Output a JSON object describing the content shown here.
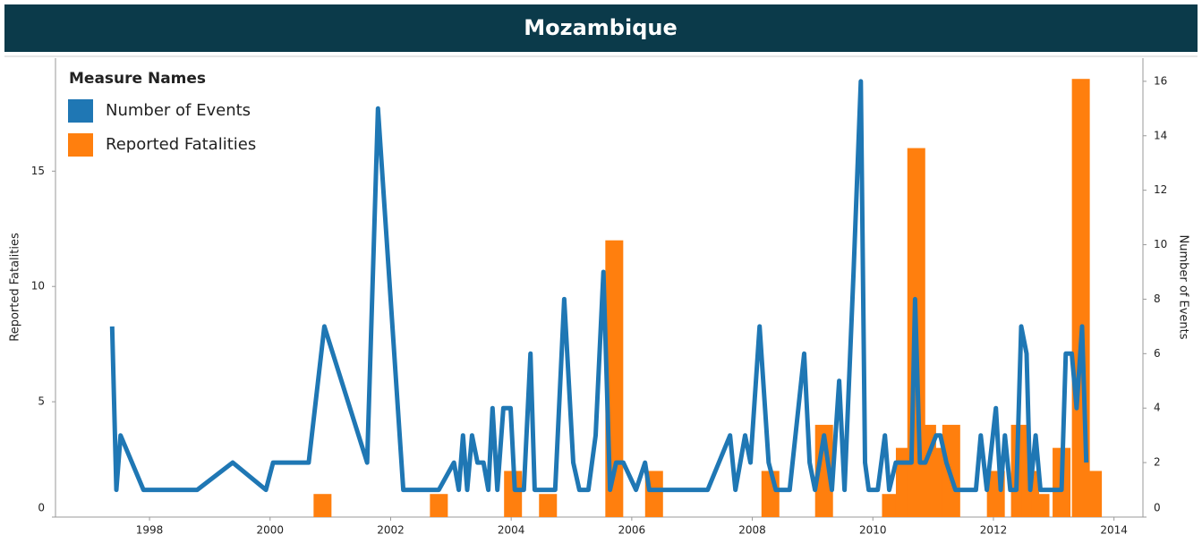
{
  "chart_data": {
    "type": "combo",
    "title": "Mozambique",
    "legend_title": "Measure Names",
    "y_label": "Reported Fatalities",
    "y2_label": "Number of Events",
    "xlim": [
      1996.44,
      2014.48
    ],
    "xticks": [
      1998,
      2000,
      2002,
      2004,
      2006,
      2008,
      2010,
      2012,
      2014
    ],
    "ylim": [
      0,
      19.9
    ],
    "yticks": [
      0,
      5,
      10,
      15
    ],
    "y2lim": [
      0,
      16.85
    ],
    "y2ticks": [
      0,
      2,
      4,
      6,
      8,
      10,
      12,
      14,
      16
    ],
    "legend": "upper left",
    "series": [
      {
        "name": "Number of Events",
        "type": "line",
        "axis": "y2",
        "color": "#1f77b4",
        "x": [
          1997.38,
          1997.45,
          1997.52,
          1997.9,
          1998.79,
          1999.38,
          1999.93,
          2000.05,
          2000.64,
          2000.9,
          2001.61,
          2001.79,
          2002.21,
          2002.8,
          2003.05,
          2003.13,
          2003.2,
          2003.27,
          2003.35,
          2003.44,
          2003.54,
          2003.62,
          2003.69,
          2003.77,
          2003.87,
          2003.99,
          2004.06,
          2004.21,
          2004.32,
          2004.39,
          2004.73,
          2004.88,
          2005.03,
          2005.13,
          2005.28,
          2005.4,
          2005.53,
          2005.64,
          2005.74,
          2005.86,
          2006.07,
          2006.22,
          2006.29,
          2007.26,
          2007.63,
          2007.72,
          2007.88,
          2007.97,
          2008.12,
          2008.27,
          2008.39,
          2008.62,
          2008.86,
          2008.95,
          2009.04,
          2009.19,
          2009.32,
          2009.44,
          2009.53,
          2009.68,
          2009.8,
          2009.87,
          2009.93,
          2010.08,
          2010.2,
          2010.27,
          2010.38,
          2010.64,
          2010.7,
          2010.78,
          2010.87,
          2011.05,
          2011.12,
          2011.22,
          2011.37,
          2011.71,
          2011.79,
          2011.89,
          2012.04,
          2012.12,
          2012.19,
          2012.28,
          2012.38,
          2012.46,
          2012.55,
          2012.61,
          2012.7,
          2012.78,
          2013.13,
          2013.2,
          2013.3,
          2013.38,
          2013.47,
          2013.54
        ],
        "values": [
          7,
          1,
          3,
          1,
          1,
          2,
          1,
          2,
          2,
          7,
          2,
          15,
          1,
          1,
          2,
          1,
          3,
          1,
          3,
          2,
          2,
          1,
          4,
          1,
          4,
          4,
          1,
          1,
          6,
          1,
          1,
          8,
          2,
          1,
          1,
          3,
          9,
          1,
          2,
          2,
          1,
          2,
          1,
          1,
          3,
          1,
          3,
          2,
          7,
          2,
          1,
          1,
          6,
          2,
          1,
          3,
          1,
          5,
          1,
          9,
          16,
          2,
          1,
          1,
          3,
          1,
          2,
          2,
          8,
          2,
          2,
          3,
          3,
          2,
          1,
          1,
          3,
          1,
          4,
          1,
          3,
          1,
          1,
          7,
          6,
          1,
          3,
          1,
          1,
          6,
          6,
          4,
          7,
          2
        ]
      },
      {
        "name": "Reported Fatalities",
        "type": "bar",
        "axis": "y",
        "color": "#ff7f0e",
        "x": [
          2000.87,
          2002.8,
          2004.03,
          2004.61,
          2005.71,
          2006.37,
          2008.3,
          2009.19,
          2010.3,
          2010.53,
          2010.72,
          2010.9,
          2011.02,
          2011.3,
          2012.04,
          2012.44,
          2012.61,
          2012.78,
          2013.13,
          2013.45,
          2013.65
        ],
        "values": [
          1,
          1,
          2,
          1,
          12,
          2,
          2,
          4,
          1,
          3,
          16,
          4,
          3,
          4,
          2,
          4,
          2,
          1,
          3,
          19,
          2
        ]
      }
    ]
  }
}
